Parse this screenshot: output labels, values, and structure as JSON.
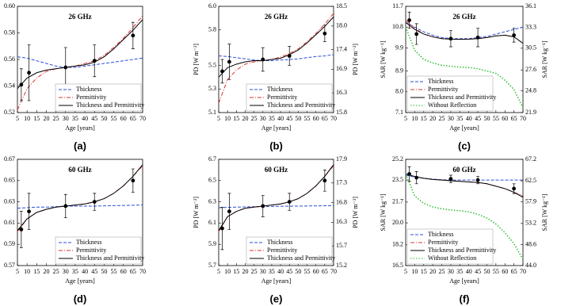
{
  "chart_data": [
    {
      "type": "line",
      "title": "26 GHz",
      "xlabel": "Age [years]",
      "label": "(a)",
      "legend": "lower right",
      "xlim": [
        5,
        70
      ],
      "xticks": [
        5,
        10,
        15,
        20,
        25,
        30,
        35,
        40,
        45,
        50,
        55,
        60,
        65,
        70
      ],
      "ylim": [
        0.52,
        0.6
      ],
      "yticks": [
        0.52,
        0.54,
        0.56,
        0.58,
        {
          "value": 0.6,
          "label": "0.60"
        }
      ],
      "x": [
        5,
        10,
        15,
        20,
        25,
        30,
        35,
        40,
        45,
        50,
        55,
        60,
        65,
        70
      ],
      "series": [
        {
          "name": "Thickness",
          "color": "#2b4fd8",
          "style": "dashed",
          "values": [
            0.562,
            0.561,
            0.559,
            0.557,
            0.555,
            0.554,
            0.554,
            0.555,
            0.556,
            0.557,
            0.558,
            0.559,
            0.56,
            0.561
          ]
        },
        {
          "name": "Permittivity",
          "color": "#e03030",
          "style": "dashdot",
          "values": [
            0.522,
            0.538,
            0.546,
            0.551,
            0.553,
            0.554,
            0.555,
            0.557,
            0.559,
            0.563,
            0.569,
            0.576,
            0.584,
            0.593
          ]
        },
        {
          "name": "Thickness and Permittivity",
          "color": "#000000",
          "style": "solid",
          "values": [
            0.538,
            0.546,
            0.55,
            0.552,
            0.553,
            0.554,
            0.555,
            0.556,
            0.558,
            0.562,
            0.568,
            0.575,
            0.582,
            0.59
          ]
        }
      ],
      "markers": {
        "x": [
          7,
          11,
          30,
          45,
          65
        ],
        "values": [
          0.541,
          0.55,
          0.554,
          0.559,
          0.578
        ],
        "errors": [
          0.012,
          0.021,
          0.015,
          0.012,
          0.01
        ]
      }
    },
    {
      "type": "line",
      "title": "26 GHz",
      "xlabel": "Age [years]",
      "ylabel": "PD [W m⁻²]",
      "y2label": "PD [W m⁻²]",
      "label": "(b)",
      "legend": "lower right",
      "xlim": [
        5,
        70
      ],
      "xticks": [
        5,
        10,
        15,
        20,
        25,
        30,
        35,
        40,
        45,
        50,
        55,
        60,
        65,
        70
      ],
      "ylim": [
        5.1,
        6.0
      ],
      "yticks": [
        5.1,
        5.3,
        5.5,
        5.8,
        {
          "value": 6,
          "label": "6.0"
        }
      ],
      "y2lim": [
        15.8,
        18.5
      ],
      "y2ticks": [
        15.8,
        16.3,
        16.9,
        17.4,
        {
          "value": 18,
          "label": "18.0"
        },
        18.5
      ],
      "x": [
        5,
        10,
        15,
        20,
        25,
        30,
        35,
        40,
        45,
        50,
        55,
        60,
        65,
        70
      ],
      "series": [
        {
          "name": "Thickness",
          "color": "#2b4fd8",
          "style": "dashed",
          "values": [
            5.58,
            5.575,
            5.565,
            5.555,
            5.545,
            5.54,
            5.54,
            5.545,
            5.55,
            5.555,
            5.565,
            5.575,
            5.58,
            5.59
          ]
        },
        {
          "name": "Permittivity",
          "color": "#e03030",
          "style": "dashdot",
          "values": [
            5.18,
            5.38,
            5.46,
            5.51,
            5.53,
            5.54,
            5.55,
            5.57,
            5.6,
            5.64,
            5.7,
            5.77,
            5.85,
            5.94
          ]
        },
        {
          "name": "Thickness and Permittivity",
          "color": "#000000",
          "style": "solid",
          "values": [
            5.4,
            5.48,
            5.51,
            5.53,
            5.54,
            5.54,
            5.55,
            5.56,
            5.59,
            5.63,
            5.69,
            5.76,
            5.83,
            5.91
          ]
        }
      ],
      "markers": {
        "x": [
          7,
          11,
          30,
          45,
          65
        ],
        "values": [
          5.45,
          5.53,
          5.55,
          5.58,
          5.77
        ],
        "errors": [
          0.1,
          0.15,
          0.1,
          0.08,
          0.07
        ]
      }
    },
    {
      "type": "line",
      "title": "26 GHz",
      "xlabel": "Age [years]",
      "ylabel": "SAR [W kg⁻¹]",
      "y2label": "SAR [W kg⁻¹]",
      "label": "(c)",
      "legend": "lower left",
      "xlim": [
        5,
        70
      ],
      "xticks": [
        5,
        10,
        15,
        20,
        25,
        30,
        35,
        40,
        45,
        50,
        55,
        60,
        65,
        70
      ],
      "ylim": [
        7.1,
        11.7
      ],
      "yticks": [
        7.1,
        {
          "value": 8,
          "label": "8.0"
        },
        8.9,
        9.9,
        10.8,
        11.7
      ],
      "y2lim": [
        21.9,
        36.1
      ],
      "y2ticks": [
        21.9,
        24.8,
        27.6,
        30.5,
        33.3,
        36.1
      ],
      "x": [
        5,
        10,
        15,
        20,
        25,
        30,
        35,
        40,
        45,
        50,
        55,
        60,
        65,
        70
      ],
      "series": [
        {
          "name": "Thickness",
          "color": "#2b4fd8",
          "style": "dashed",
          "values": [
            11.0,
            10.8,
            10.6,
            10.45,
            10.35,
            10.3,
            10.3,
            10.3,
            10.35,
            10.4,
            10.5,
            10.6,
            10.7,
            10.8
          ]
        },
        {
          "name": "Permittivity",
          "color": "#e03030",
          "style": "dashdot",
          "values": [
            11.1,
            10.75,
            10.5,
            10.38,
            10.3,
            10.28,
            10.27,
            10.28,
            10.3,
            10.35,
            10.42,
            10.45,
            10.38,
            10.1
          ]
        },
        {
          "name": "Thickness and Permittivity",
          "color": "#000000",
          "style": "solid",
          "values": [
            11.0,
            10.7,
            10.5,
            10.38,
            10.3,
            10.28,
            10.27,
            10.28,
            10.3,
            10.35,
            10.42,
            10.45,
            10.38,
            10.1
          ]
        },
        {
          "name": "Without Reflection",
          "color": "#22bb22",
          "style": "dotted",
          "values": [
            10.8,
            9.8,
            9.4,
            9.25,
            9.15,
            9.1,
            9.07,
            9.05,
            9.0,
            8.9,
            8.8,
            8.5,
            8.1,
            7.3
          ]
        }
      ],
      "markers": {
        "x": [
          7,
          11,
          30,
          45,
          65
        ],
        "values": [
          11.1,
          10.5,
          10.3,
          10.35,
          10.45
        ],
        "errors": [
          0.35,
          0.45,
          0.35,
          0.4,
          0.3
        ]
      }
    },
    {
      "type": "line",
      "title": "60 GHz",
      "xlabel": "Age [years]",
      "label": "(d)",
      "legend": "lower right",
      "xlim": [
        5,
        70
      ],
      "xticks": [
        5,
        10,
        15,
        20,
        25,
        30,
        35,
        40,
        45,
        50,
        55,
        60,
        65,
        70
      ],
      "ylim": [
        0.57,
        0.67
      ],
      "yticks": [
        0.57,
        0.59,
        0.61,
        0.63,
        0.65,
        0.67
      ],
      "x": [
        5,
        10,
        15,
        20,
        25,
        30,
        35,
        40,
        45,
        50,
        55,
        60,
        65,
        70
      ],
      "series": [
        {
          "name": "Thickness",
          "color": "#2b4fd8",
          "style": "dashed",
          "values": [
            0.624,
            0.6245,
            0.625,
            0.625,
            0.6255,
            0.626,
            0.626,
            0.626,
            0.626,
            0.6262,
            0.6264,
            0.6266,
            0.6268,
            0.627
          ]
        },
        {
          "name": "Permittivity",
          "color": "#e03030",
          "style": "dashdot",
          "values": [
            0.602,
            0.614,
            0.62,
            0.623,
            0.625,
            0.626,
            0.627,
            0.628,
            0.63,
            0.633,
            0.638,
            0.645,
            0.654,
            0.664
          ]
        },
        {
          "name": "Thickness and Permittivity",
          "color": "#000000",
          "style": "solid",
          "values": [
            0.603,
            0.614,
            0.62,
            0.623,
            0.625,
            0.626,
            0.627,
            0.628,
            0.63,
            0.633,
            0.638,
            0.645,
            0.654,
            0.665
          ]
        }
      ],
      "markers": {
        "x": [
          7,
          11,
          30,
          45,
          65
        ],
        "values": [
          0.604,
          0.621,
          0.626,
          0.63,
          0.65
        ],
        "errors": [
          0.017,
          0.017,
          0.011,
          0.008,
          0.011
        ]
      }
    },
    {
      "type": "line",
      "title": "60 GHz",
      "xlabel": "Age [years]",
      "ylabel": "PD [W m⁻²]",
      "y2label": "PD [W m⁻²]",
      "label": "(e)",
      "legend": "lower right",
      "xlim": [
        5,
        70
      ],
      "xticks": [
        5,
        10,
        15,
        20,
        25,
        30,
        35,
        40,
        45,
        50,
        55,
        60,
        65,
        70
      ],
      "ylim": [
        5.7,
        6.7
      ],
      "yticks": [
        5.7,
        5.9,
        6.1,
        6.3,
        6.5,
        6.7
      ],
      "y2lim": [
        15.2,
        17.9
      ],
      "y2ticks": [
        15.2,
        15.7,
        16.3,
        16.8,
        17.3,
        17.9
      ],
      "x": [
        5,
        10,
        15,
        20,
        25,
        30,
        35,
        40,
        45,
        50,
        55,
        60,
        65,
        70
      ],
      "series": [
        {
          "name": "Thickness",
          "color": "#2b4fd8",
          "style": "dashed",
          "values": [
            6.245,
            6.248,
            6.25,
            6.252,
            6.254,
            6.256,
            6.257,
            6.258,
            6.259,
            6.26,
            6.261,
            6.262,
            6.263,
            6.264
          ]
        },
        {
          "name": "Permittivity",
          "color": "#e03030",
          "style": "dashdot",
          "values": [
            6.02,
            6.16,
            6.21,
            6.24,
            6.25,
            6.26,
            6.27,
            6.28,
            6.3,
            6.33,
            6.38,
            6.45,
            6.54,
            6.64
          ]
        },
        {
          "name": "Thickness and Permittivity",
          "color": "#000000",
          "style": "solid",
          "values": [
            6.03,
            6.16,
            6.21,
            6.24,
            6.25,
            6.26,
            6.27,
            6.28,
            6.3,
            6.33,
            6.38,
            6.45,
            6.54,
            6.65
          ]
        }
      ],
      "markers": {
        "x": [
          7,
          11,
          30,
          45,
          65
        ],
        "values": [
          6.05,
          6.21,
          6.26,
          6.3,
          6.5
        ],
        "errors": [
          0.2,
          0.17,
          0.1,
          0.08,
          0.1
        ]
      }
    },
    {
      "type": "line",
      "title": "60 GHz",
      "xlabel": "Age [years]",
      "ylabel": "SAR [W kg⁻¹]",
      "y2label": "SAR [W kg⁻¹]",
      "label": "(f)",
      "legend": "lower left",
      "xlim": [
        5,
        70
      ],
      "xticks": [
        5,
        10,
        15,
        20,
        25,
        30,
        35,
        40,
        45,
        50,
        55,
        60,
        65,
        70
      ],
      "ylim": [
        16.5,
        25.2
      ],
      "yticks": [
        16.5,
        18.2,
        {
          "value": 20,
          "label": "20.0"
        },
        21.7,
        23.5,
        25.2
      ],
      "y2lim": [
        44.0,
        67.2
      ],
      "y2ticks": [
        {
          "value": 44,
          "label": "44.0"
        },
        48.6,
        53.2,
        57.9,
        62.5,
        67.2
      ],
      "x": [
        5,
        10,
        15,
        20,
        25,
        30,
        35,
        40,
        45,
        50,
        55,
        60,
        65,
        70
      ],
      "series": [
        {
          "name": "Thickness",
          "color": "#2b4fd8",
          "style": "dashed",
          "values": [
            23.9,
            23.75,
            23.65,
            23.58,
            23.53,
            23.5,
            23.5,
            23.5,
            23.5,
            23.5,
            23.5,
            23.5,
            23.5,
            23.5
          ]
        },
        {
          "name": "Permittivity",
          "color": "#e03030",
          "style": "dashdot",
          "values": [
            24.0,
            23.8,
            23.65,
            23.55,
            23.5,
            23.45,
            23.4,
            23.35,
            23.3,
            23.2,
            23.0,
            22.8,
            22.5,
            22.2
          ]
        },
        {
          "name": "Thickness and Permittivity",
          "color": "#000000",
          "style": "solid",
          "values": [
            24.0,
            23.8,
            23.65,
            23.55,
            23.5,
            23.45,
            23.4,
            23.35,
            23.3,
            23.2,
            23.0,
            22.8,
            22.5,
            22.1
          ]
        },
        {
          "name": "Without Reflection",
          "color": "#22bb22",
          "style": "dotted",
          "values": [
            24.0,
            22.2,
            21.6,
            21.3,
            21.15,
            21.05,
            21.0,
            20.9,
            20.7,
            20.4,
            19.9,
            19.2,
            18.3,
            17.0
          ]
        }
      ],
      "markers": {
        "x": [
          7,
          11,
          30,
          45,
          65
        ],
        "values": [
          24.0,
          23.7,
          23.6,
          23.5,
          22.8
        ],
        "errors": [
          0.6,
          0.5,
          0.3,
          0.3,
          0.4
        ]
      }
    }
  ]
}
